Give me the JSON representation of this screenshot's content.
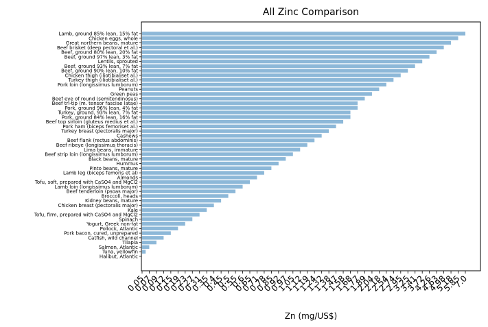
{
  "chart_data": {
    "type": "bar",
    "orientation": "horizontal",
    "title": "All Zinc Comparison",
    "xlabel": "Zn (mg/US$)",
    "ylabel": "",
    "bar_color": "#8db8d8",
    "grid": false,
    "legend": "none",
    "categories": [
      "Lamb, ground 85% lean, 15% fat",
      "Chicken eggs, whole",
      "Great northern beans, mature",
      "Beef brisket (deep pectoral et al.)",
      "Beef, ground 80% lean, 20% fat",
      "Beef, ground 97% lean, 3% fat",
      "Lentils, sprouted",
      "Beef, ground 93% lean, 7% fat",
      "Beef, ground 90% lean, 10% fat",
      "Chicken thigh (iliotibialiset al.)",
      "Turkey thigh (iliotibialiset al.)",
      "Pork loin (longissimus lumborum)",
      "Peanuts",
      "Green peas",
      "Beef eye of round (semitendinosus)",
      "Beef tri-tip (m. tensor fasciae latae)",
      "Pork, ground 96% lean, 4% fat",
      "Turkey, ground, 93% lean, 7% fat",
      "Pork, ground 84% lean, 16% fat",
      "Beef top sirloin (gluteus medius et al.)",
      "Pork ham (biceps femoriset al.)",
      "Turkey breast (pectoralis major)",
      "Cashews",
      "Beef flank (rectus abdominis)",
      "Beef ribeye (longissimus thoracis)",
      "Lima beans, immature",
      "Beef strip loin (longissimus lumborum)",
      "Black beans, mature",
      "Hummus",
      "Pinto beans, mature",
      "Lamb leg (biceps femoris et al)",
      "Almonds",
      "Tofu, soft, prepared with CaSO4 and MgCl2",
      "Lamb loin (longissimus lumborum)",
      "Beef tenderloin (psoas major)",
      "Broccoli, heads",
      "Kidney beans, mature",
      "Chicken breast (pectoralis major)",
      "Kale",
      "Tofu, firm, prepared with CaSO4 and MgCl2",
      "Spinach",
      "Yogurt, Greek non-fat",
      "Pollock, Atlantic",
      "Pork bacon, cured, unprepared",
      "Catfish, wild channel",
      "Tilapia",
      "Salmon, Atlantic",
      "Tuna, yellowfin",
      "Halibut, Atlantic"
    ],
    "values": [
      7.0,
      5.85,
      5.18,
      4.98,
      4.63,
      4.26,
      3.72,
      3.41,
      3.25,
      2.95,
      2.74,
      2.54,
      2.18,
      2.04,
      1.89,
      1.77,
      1.77,
      1.68,
      1.68,
      1.58,
      1.47,
      1.38,
      1.32,
      1.24,
      1.19,
      1.12,
      1.05,
      0.97,
      0.92,
      0.85,
      0.78,
      0.71,
      0.65,
      0.6,
      0.55,
      0.5,
      0.45,
      0.4,
      0.35,
      0.31,
      0.27,
      0.23,
      0.19,
      0.15,
      0.12,
      0.09,
      0.07,
      0.06,
      0.05
    ],
    "tick_labels": [
      "0.05",
      "0.07",
      "0.09",
      "0.12",
      "0.15",
      "0.19",
      "0.23",
      "0.27",
      "0.31",
      "0.35",
      "0.4",
      "0.45",
      "0.5",
      "0.55",
      "0.6",
      "0.65",
      "0.71",
      "0.78",
      "0.85",
      "0.92",
      "0.97",
      "1.05",
      "1.12",
      "1.19",
      "1.24",
      "1.32",
      "1.38",
      "1.47",
      "1.58",
      "1.68",
      "1.77",
      "1.89",
      "2.04",
      "2.18",
      "2.54",
      "2.74",
      "2.95",
      "3.25",
      "3.41",
      "3.72",
      "4.26",
      "4.63",
      "4.98",
      "5.18",
      "5.85",
      "7.0"
    ],
    "x_scale": "rank"
  }
}
